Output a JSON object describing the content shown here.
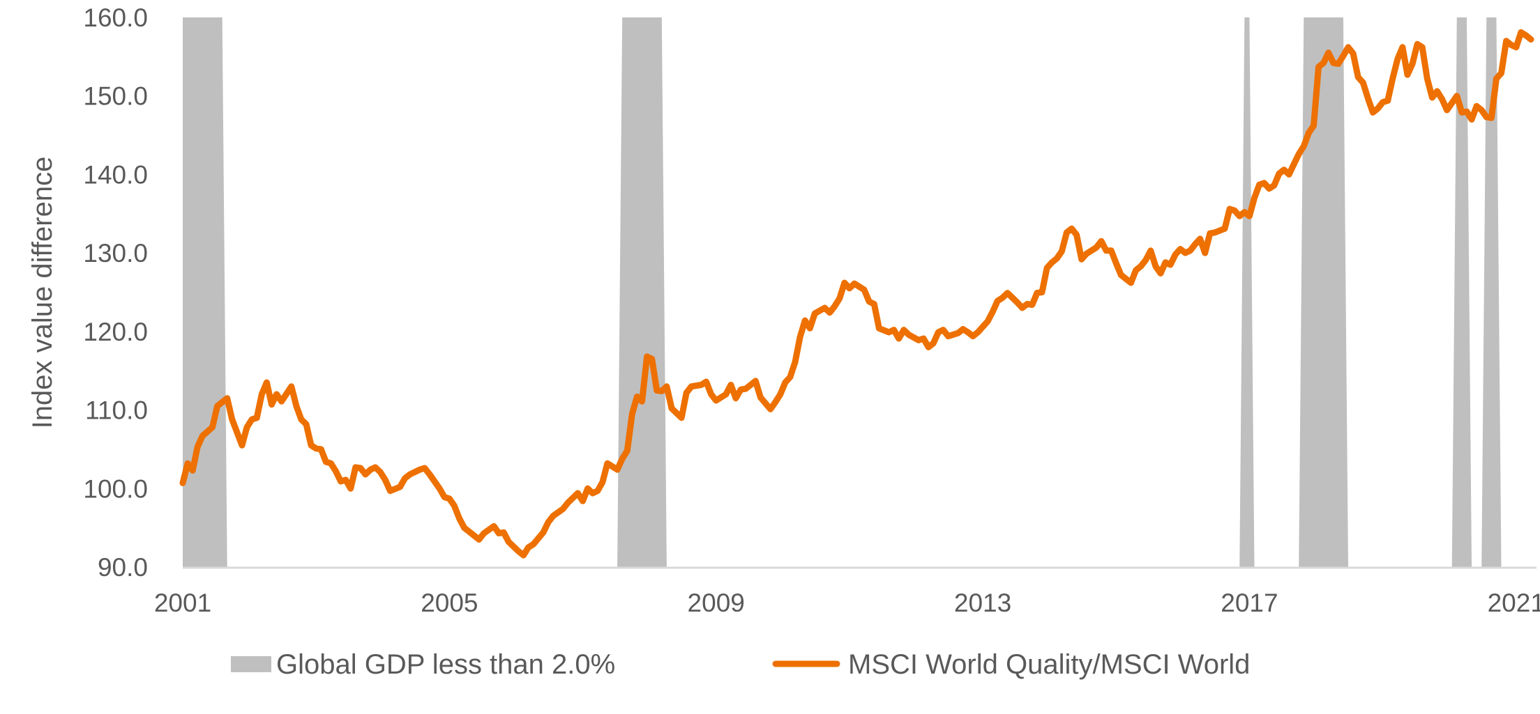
{
  "chart_data": {
    "type": "line",
    "title": "",
    "xlabel": "",
    "ylabel": "Index value difference",
    "ylim": [
      90,
      160
    ],
    "yticks": [
      90,
      100,
      110,
      120,
      130,
      140,
      150,
      160
    ],
    "ytick_labels": [
      "90.0",
      "100.0",
      "110.0",
      "120.0",
      "130.0",
      "140.0",
      "150.0",
      "160.0"
    ],
    "x_unit": "month index from start of 2001",
    "xlim": [
      0,
      273
    ],
    "xticks": [
      {
        "index": 0,
        "label": "2001"
      },
      {
        "index": 54,
        "label": "2005"
      },
      {
        "index": 108,
        "label": "2009"
      },
      {
        "index": 162,
        "label": "2013"
      },
      {
        "index": 216,
        "label": "2017"
      },
      {
        "index": 270,
        "label": "2021"
      }
    ],
    "grid": false,
    "legend_position": "bottom",
    "colors": {
      "line": "#ED7000",
      "shade": "#BFBFBF",
      "text": "#595959",
      "axis": "#D9D9D9"
    },
    "shaded_series": {
      "name": "Global GDP less than 2.0%",
      "periods": [
        [
          0,
          8
        ],
        [
          89,
          97
        ],
        [
          215,
          216
        ],
        [
          227,
          235
        ],
        [
          258,
          260
        ],
        [
          264,
          266
        ]
      ]
    },
    "series": [
      {
        "name": "MSCI World Quality/MSCI World",
        "points": [
          [
            0,
            100.7
          ],
          [
            1,
            103.2
          ],
          [
            2,
            102.3
          ],
          [
            3,
            105.3
          ],
          [
            4,
            106.7
          ],
          [
            6,
            107.8
          ],
          [
            7,
            110.5
          ],
          [
            9,
            111.5
          ],
          [
            10,
            108.8
          ],
          [
            12,
            105.5
          ],
          [
            13,
            107.8
          ],
          [
            14,
            108.8
          ],
          [
            15,
            109.0
          ],
          [
            16,
            112.0
          ],
          [
            17,
            113.5
          ],
          [
            18,
            110.7
          ],
          [
            19,
            112.0
          ],
          [
            20,
            111.1
          ],
          [
            22,
            113.0
          ],
          [
            23,
            110.5
          ],
          [
            24,
            108.8
          ],
          [
            25,
            108.2
          ],
          [
            26,
            105.5
          ],
          [
            27,
            105.1
          ],
          [
            28,
            105.0
          ],
          [
            29,
            103.4
          ],
          [
            30,
            103.2
          ],
          [
            31,
            102.2
          ],
          [
            32,
            100.9
          ],
          [
            33,
            101.1
          ],
          [
            34,
            100.0
          ],
          [
            35,
            102.7
          ],
          [
            36,
            102.6
          ],
          [
            37,
            101.8
          ],
          [
            38,
            102.4
          ],
          [
            39,
            102.7
          ],
          [
            40,
            102.1
          ],
          [
            41,
            101.1
          ],
          [
            42,
            99.7
          ],
          [
            44,
            100.2
          ],
          [
            45,
            101.3
          ],
          [
            46,
            101.8
          ],
          [
            48,
            102.4
          ],
          [
            49,
            102.6
          ],
          [
            50,
            101.8
          ],
          [
            51,
            100.9
          ],
          [
            52,
            100.0
          ],
          [
            53,
            98.9
          ],
          [
            54,
            98.7
          ],
          [
            55,
            97.8
          ],
          [
            56,
            96.2
          ],
          [
            57,
            95.0
          ],
          [
            58,
            94.5
          ],
          [
            60,
            93.5
          ],
          [
            61,
            94.3
          ],
          [
            63,
            95.2
          ],
          [
            64,
            94.3
          ],
          [
            65,
            94.4
          ],
          [
            66,
            93.2
          ],
          [
            68,
            92.0
          ],
          [
            69,
            91.5
          ],
          [
            70,
            92.5
          ],
          [
            71,
            92.9
          ],
          [
            73,
            94.4
          ],
          [
            74,
            95.7
          ],
          [
            75,
            96.5
          ],
          [
            77,
            97.4
          ],
          [
            78,
            98.2
          ],
          [
            79,
            98.8
          ],
          [
            80,
            99.4
          ],
          [
            81,
            98.4
          ],
          [
            82,
            100.0
          ],
          [
            83,
            99.4
          ],
          [
            84,
            99.7
          ],
          [
            85,
            100.8
          ],
          [
            86,
            103.2
          ],
          [
            88,
            102.4
          ],
          [
            89,
            103.8
          ],
          [
            90,
            104.8
          ],
          [
            91,
            109.5
          ],
          [
            92,
            111.7
          ],
          [
            93,
            111.1
          ],
          [
            94,
            116.8
          ],
          [
            95,
            116.5
          ],
          [
            96,
            112.5
          ],
          [
            97,
            112.4
          ],
          [
            98,
            113.0
          ],
          [
            99,
            110.2
          ],
          [
            101,
            109.0
          ],
          [
            102,
            112.2
          ],
          [
            103,
            113.0
          ],
          [
            105,
            113.2
          ],
          [
            106,
            113.6
          ],
          [
            107,
            112.0
          ],
          [
            108,
            111.2
          ],
          [
            110,
            112.0
          ],
          [
            111,
            113.2
          ],
          [
            112,
            111.5
          ],
          [
            113,
            112.6
          ],
          [
            114,
            112.7
          ],
          [
            115,
            113.2
          ],
          [
            116,
            113.7
          ],
          [
            117,
            111.6
          ],
          [
            119,
            110.1
          ],
          [
            120,
            111.0
          ],
          [
            121,
            112.0
          ],
          [
            122,
            113.5
          ],
          [
            123,
            114.2
          ],
          [
            124,
            116.1
          ],
          [
            125,
            119.3
          ],
          [
            126,
            121.4
          ],
          [
            127,
            120.4
          ],
          [
            128,
            122.3
          ],
          [
            130,
            123.0
          ],
          [
            131,
            122.4
          ],
          [
            132,
            123.2
          ],
          [
            133,
            124.2
          ],
          [
            134,
            126.2
          ],
          [
            135,
            125.5
          ],
          [
            136,
            126.1
          ],
          [
            138,
            125.3
          ],
          [
            139,
            123.8
          ],
          [
            140,
            123.5
          ],
          [
            141,
            120.4
          ],
          [
            143,
            119.9
          ],
          [
            144,
            120.2
          ],
          [
            145,
            119.1
          ],
          [
            146,
            120.2
          ],
          [
            147,
            119.6
          ],
          [
            149,
            118.9
          ],
          [
            150,
            119.1
          ],
          [
            151,
            118.0
          ],
          [
            152,
            118.5
          ],
          [
            153,
            119.9
          ],
          [
            154,
            120.2
          ],
          [
            155,
            119.4
          ],
          [
            156,
            119.6
          ],
          [
            157,
            119.8
          ],
          [
            158,
            120.3
          ],
          [
            159,
            119.9
          ],
          [
            160,
            119.4
          ],
          [
            161,
            119.9
          ],
          [
            163,
            121.3
          ],
          [
            164,
            122.5
          ],
          [
            165,
            123.9
          ],
          [
            166,
            124.3
          ],
          [
            167,
            124.9
          ],
          [
            168,
            124.3
          ],
          [
            169,
            123.7
          ],
          [
            170,
            123.0
          ],
          [
            171,
            123.5
          ],
          [
            172,
            123.4
          ],
          [
            173,
            124.9
          ],
          [
            174,
            125.0
          ],
          [
            175,
            128.1
          ],
          [
            176,
            128.8
          ],
          [
            177,
            129.3
          ],
          [
            178,
            130.2
          ],
          [
            179,
            132.6
          ],
          [
            180,
            133.1
          ],
          [
            181,
            132.3
          ],
          [
            182,
            129.2
          ],
          [
            183,
            129.9
          ],
          [
            185,
            130.7
          ],
          [
            186,
            131.5
          ],
          [
            187,
            130.3
          ],
          [
            188,
            130.3
          ],
          [
            189,
            128.7
          ],
          [
            190,
            127.2
          ],
          [
            192,
            126.2
          ],
          [
            193,
            127.8
          ],
          [
            194,
            128.3
          ],
          [
            195,
            129.1
          ],
          [
            196,
            130.3
          ],
          [
            197,
            128.3
          ],
          [
            198,
            127.4
          ],
          [
            199,
            128.8
          ],
          [
            200,
            128.5
          ],
          [
            201,
            129.8
          ],
          [
            202,
            130.5
          ],
          [
            203,
            130.0
          ],
          [
            204,
            130.3
          ],
          [
            205,
            131.1
          ],
          [
            206,
            131.8
          ],
          [
            207,
            130.0
          ],
          [
            208,
            132.5
          ],
          [
            209,
            132.6
          ],
          [
            211,
            133.1
          ],
          [
            212,
            135.6
          ],
          [
            213,
            135.4
          ],
          [
            214,
            134.7
          ],
          [
            215,
            135.2
          ],
          [
            216,
            134.7
          ],
          [
            217,
            137.0
          ],
          [
            218,
            138.7
          ],
          [
            219,
            138.9
          ],
          [
            220,
            138.2
          ],
          [
            221,
            138.6
          ],
          [
            222,
            140.1
          ],
          [
            223,
            140.6
          ],
          [
            224,
            140.0
          ],
          [
            225,
            141.3
          ],
          [
            226,
            142.6
          ],
          [
            227,
            143.6
          ],
          [
            228,
            145.3
          ],
          [
            229,
            146.2
          ],
          [
            230,
            153.7
          ],
          [
            231,
            154.2
          ],
          [
            232,
            155.5
          ],
          [
            233,
            154.2
          ],
          [
            234,
            154.1
          ],
          [
            235,
            155.1
          ],
          [
            236,
            156.2
          ],
          [
            237,
            155.4
          ],
          [
            238,
            152.4
          ],
          [
            239,
            151.7
          ],
          [
            240,
            149.7
          ],
          [
            241,
            147.9
          ],
          [
            242,
            148.4
          ],
          [
            243,
            149.2
          ],
          [
            244,
            149.4
          ],
          [
            245,
            152.2
          ],
          [
            246,
            154.7
          ],
          [
            247,
            156.2
          ],
          [
            248,
            152.7
          ],
          [
            249,
            154.1
          ],
          [
            250,
            156.6
          ],
          [
            251,
            156.2
          ],
          [
            252,
            152.2
          ],
          [
            253,
            149.8
          ],
          [
            254,
            150.6
          ],
          [
            255,
            149.6
          ],
          [
            256,
            148.2
          ],
          [
            257,
            149.1
          ],
          [
            258,
            150.0
          ],
          [
            259,
            147.9
          ],
          [
            260,
            148.0
          ],
          [
            261,
            147.0
          ],
          [
            262,
            148.7
          ],
          [
            263,
            148.2
          ],
          [
            264,
            147.3
          ],
          [
            265,
            147.2
          ],
          [
            266,
            152.2
          ],
          [
            267,
            152.9
          ],
          [
            268,
            157.0
          ],
          [
            269,
            156.5
          ],
          [
            270,
            156.2
          ],
          [
            271,
            158.1
          ],
          [
            272,
            157.7
          ],
          [
            273,
            157.2
          ]
        ]
      }
    ]
  },
  "legend": {
    "shade_label": "Global GDP less than 2.0%",
    "line_label": "MSCI World Quality/MSCI World"
  }
}
